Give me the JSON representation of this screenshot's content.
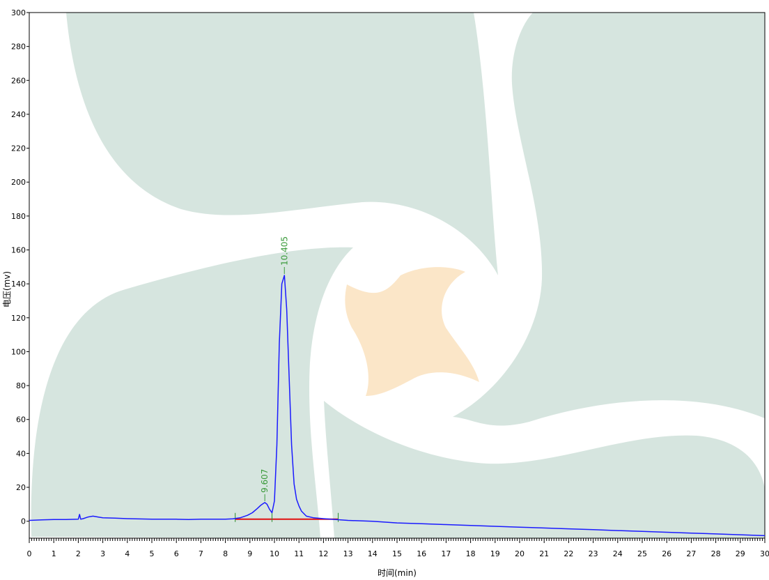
{
  "chart_data": {
    "type": "line",
    "title": "",
    "xlabel": "时间(min)",
    "ylabel": "电压(mv)",
    "xlim": [
      0,
      30
    ],
    "ylim": [
      -10,
      300
    ],
    "x_ticks": [
      0,
      1,
      2,
      3,
      4,
      5,
      6,
      7,
      8,
      9,
      10,
      11,
      12,
      13,
      14,
      15,
      16,
      17,
      18,
      19,
      20,
      21,
      22,
      23,
      24,
      25,
      26,
      27,
      28,
      29,
      30
    ],
    "y_ticks": [
      0,
      20,
      40,
      60,
      80,
      100,
      120,
      140,
      160,
      180,
      200,
      220,
      240,
      260,
      280,
      300
    ],
    "grid": false,
    "legend": "none",
    "colors": {
      "trace": "#1a1aff",
      "baseline": "#e01010",
      "peak_label": "#3a9a3a",
      "markers": "#2a8a2a",
      "watermark_green": "#d6e5df",
      "watermark_orange": "#fbe6c8"
    },
    "series": [
      {
        "x": [
          0,
          0.5,
          1,
          1.5,
          2,
          2.05,
          2.1,
          2.2,
          2.4,
          2.6,
          2.8,
          3,
          3.5,
          4,
          5,
          6,
          6.5,
          7,
          7.5,
          8,
          8.3,
          8.6,
          8.9,
          9.1,
          9.3,
          9.45,
          9.55,
          9.607,
          9.7,
          9.8,
          9.9,
          10,
          10.1,
          10.2,
          10.3,
          10.405,
          10.5,
          10.6,
          10.7,
          10.8,
          10.9,
          11,
          11.1,
          11.3,
          11.6,
          12,
          12.5,
          13,
          14,
          15,
          16,
          17,
          18,
          19,
          20,
          21,
          22,
          23,
          24,
          25,
          26,
          27,
          28,
          29,
          30
        ],
        "y": [
          0.5,
          0.8,
          1,
          1,
          1.2,
          4,
          1.2,
          1.5,
          2.5,
          3,
          2.5,
          2,
          1.8,
          1.5,
          1.2,
          1.2,
          1,
          1.2,
          1.2,
          1.2,
          1.4,
          2,
          3.5,
          5,
          7.5,
          9.5,
          10.5,
          11,
          10,
          7,
          5,
          12,
          45,
          105,
          140,
          145,
          125,
          85,
          45,
          22,
          13,
          9,
          6,
          3,
          2,
          1.5,
          1,
          0.5,
          0,
          -1,
          -1.5,
          -2,
          -2.5,
          -3,
          -3.5,
          -4,
          -4.5,
          -5,
          -5.5,
          -6,
          -6.5,
          -7,
          -7.5,
          -8,
          -8.5
        ]
      }
    ],
    "baseline": {
      "x": [
        8.4,
        12.6
      ],
      "y": [
        1.2,
        1.2
      ]
    },
    "integration_markers": [
      8.4,
      9.9,
      12.6
    ],
    "peaks": [
      {
        "label": "9.607",
        "x": 9.607,
        "y": 11
      },
      {
        "label": "10.405",
        "x": 10.405,
        "y": 145
      }
    ]
  }
}
